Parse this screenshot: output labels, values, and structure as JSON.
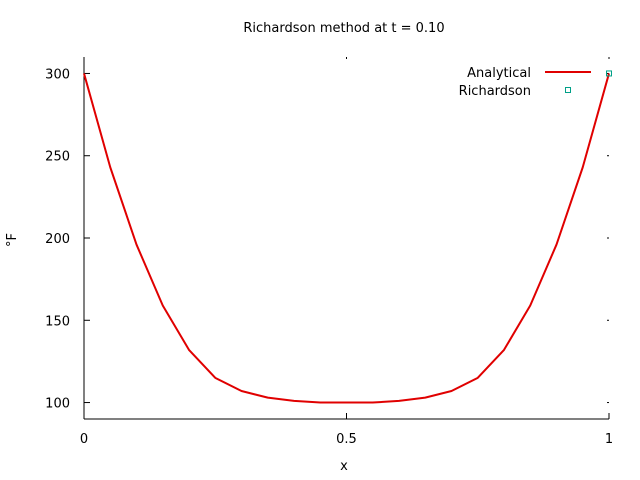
{
  "chart_data": {
    "type": "line",
    "title": "Richardson method at t = 0.10",
    "xlabel": "x",
    "ylabel": "°F",
    "xlim": [
      0,
      1
    ],
    "ylim": [
      90,
      310
    ],
    "x_ticks": [
      {
        "value": 0,
        "label": "0"
      },
      {
        "value": 0.5,
        "label": "0.5"
      },
      {
        "value": 1,
        "label": "1"
      }
    ],
    "y_ticks": [
      {
        "value": 100,
        "label": "100"
      },
      {
        "value": 150,
        "label": "150"
      },
      {
        "value": 200,
        "label": "200"
      },
      {
        "value": 250,
        "label": "250"
      },
      {
        "value": 300,
        "label": "300"
      }
    ],
    "legend_position": "top-right",
    "grid": false,
    "series": [
      {
        "name": "Analytical",
        "style": "line",
        "color": "#e00000",
        "x": [
          0,
          0.05,
          0.1,
          0.15,
          0.2,
          0.25,
          0.3,
          0.35,
          0.4,
          0.45,
          0.5,
          0.55,
          0.6,
          0.65,
          0.7,
          0.75,
          0.8,
          0.85,
          0.9,
          0.95,
          1
        ],
        "y": [
          300,
          243,
          196,
          159,
          132,
          115,
          107,
          103,
          101,
          100,
          100,
          100,
          101,
          103,
          107,
          115,
          132,
          159,
          196,
          243,
          300
        ]
      },
      {
        "name": "Richardson",
        "style": "points",
        "color": "#00a088",
        "x": [
          1
        ],
        "y": [
          300
        ]
      }
    ]
  }
}
